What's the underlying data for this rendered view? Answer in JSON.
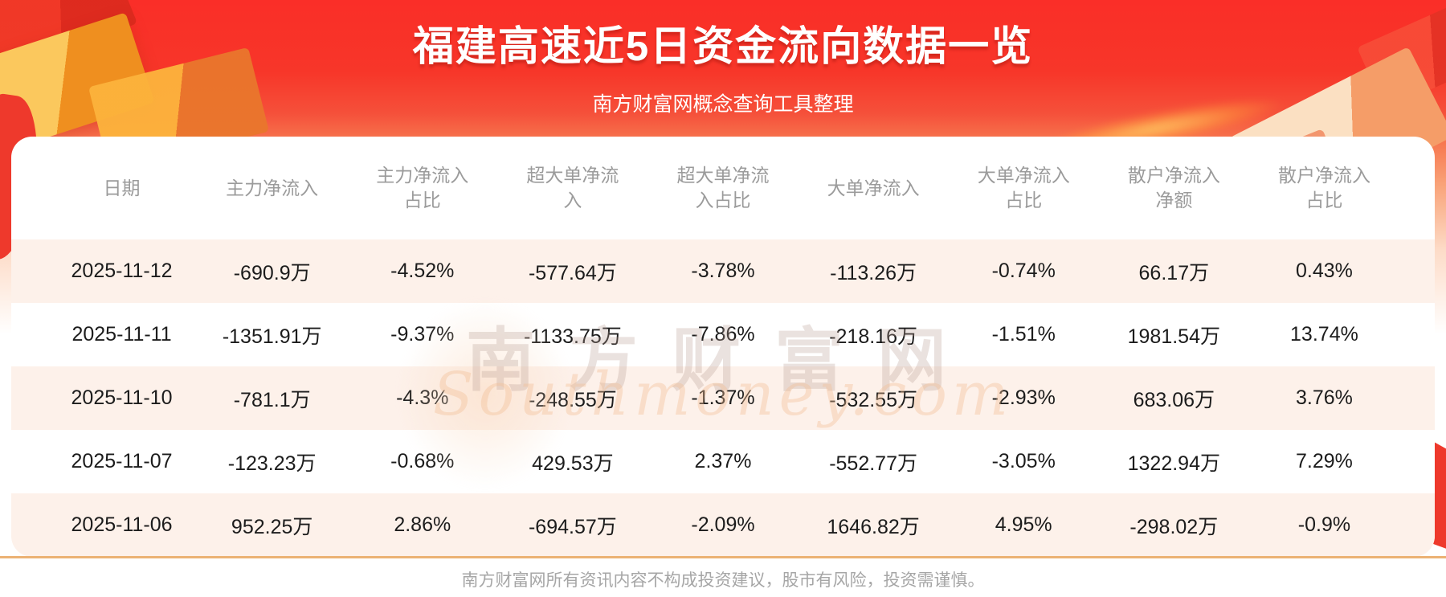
{
  "banner": {
    "title": "福建高速近5日资金流向数据一览",
    "subtitle": "南方财富网概念查询工具整理"
  },
  "chart_data": {
    "type": "table",
    "title": "福建高速近5日资金流向数据一览",
    "columns": [
      "日期",
      "主力净流入",
      "主力净流入占比",
      "超大单净流入",
      "超大单净流入占比",
      "大单净流入",
      "大单净流入占比",
      "散户净流入净额",
      "散户净流入占比"
    ],
    "rows": [
      [
        "2025-11-12",
        "-690.9万",
        "-4.52%",
        "-577.64万",
        "-3.78%",
        "-113.26万",
        "-0.74%",
        "66.17万",
        "0.43%"
      ],
      [
        "2025-11-11",
        "-1351.91万",
        "-9.37%",
        "-1133.75万",
        "-7.86%",
        "-218.16万",
        "-1.51%",
        "1981.54万",
        "13.74%"
      ],
      [
        "2025-11-10",
        "-781.1万",
        "-4.3%",
        "-248.55万",
        "-1.37%",
        "-532.55万",
        "-2.93%",
        "683.06万",
        "3.76%"
      ],
      [
        "2025-11-07",
        "-123.23万",
        "-0.68%",
        "429.53万",
        "2.37%",
        "-552.77万",
        "-3.05%",
        "1322.94万",
        "7.29%"
      ],
      [
        "2025-11-06",
        "952.25万",
        "2.86%",
        "-694.57万",
        "-2.09%",
        "1646.82万",
        "4.95%",
        "-298.02万",
        "-0.9%"
      ]
    ],
    "unit_note": "万 = 10,000 CNY"
  },
  "table": {
    "columns_display": [
      "日期",
      "主力净流入",
      "主力净流入\n占比",
      "超大单净流\n入",
      "超大单净流\n入占比",
      "大单净流入",
      "大单净流入\n占比",
      "散户净流入\n净额",
      "散户净流入\n占比"
    ]
  },
  "watermark": {
    "cn": "南方财富网",
    "en": "Southmoney.com"
  },
  "footer": {
    "disclaimer": "南方财富网所有资讯内容不构成投资建议，股市有风险，投资需谨慎。"
  },
  "colors": {
    "banner_red": "#f73629",
    "banner_fade": "#f9a379",
    "row_alt_bg": "#fdf1ea",
    "divider_tan": "#ecb274",
    "header_text": "#9b9b9b",
    "body_text": "#1c1c1c",
    "footer_text": "#a6a6a6",
    "title_text": "#ffffff"
  }
}
